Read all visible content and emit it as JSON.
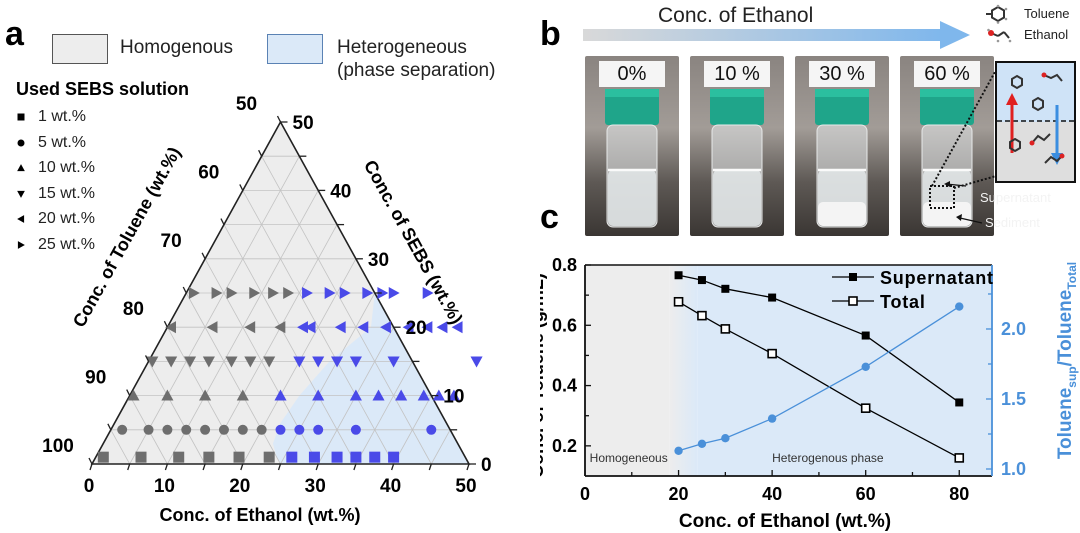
{
  "panels": {
    "a": {
      "letter": "a",
      "legend": {
        "homogenous": {
          "label": "Homogenous",
          "color": "#ededed"
        },
        "heterogeneous": {
          "label_line1": "Heterogeneous",
          "label_line2": "(phase separation)",
          "color": "#dbe9f8"
        }
      },
      "sebs_legend": {
        "title": "Used SEBS solution",
        "items": [
          {
            "marker": "square",
            "label": "1 wt.%"
          },
          {
            "marker": "circle",
            "label": "5 wt.%"
          },
          {
            "marker": "triangle-up",
            "label": "10 wt.%"
          },
          {
            "marker": "triangle-down",
            "label": "15 wt.%"
          },
          {
            "marker": "triangle-left",
            "label": "20 wt.%"
          },
          {
            "marker": "triangle-right",
            "label": "25 wt.%"
          }
        ]
      }
    },
    "b": {
      "letter": "b",
      "arrow_label": "Conc. of Ethanol",
      "molecule_legend": [
        {
          "icon": "toluene-molecule-icon",
          "label": "Toluene"
        },
        {
          "icon": "ethanol-molecule-icon",
          "label": "Ethanol"
        }
      ],
      "photos": [
        {
          "label": "0%",
          "sediment": false
        },
        {
          "label": "10 %",
          "sediment": false
        },
        {
          "label": "30 %",
          "sediment": true
        },
        {
          "label": "60 %",
          "sediment": true
        }
      ],
      "annotations": {
        "supernatant": "Supernatant",
        "sediment": "Sediment"
      }
    },
    "c": {
      "letter": "c"
    }
  },
  "chart_data": [
    {
      "type": "scatter",
      "subtype": "ternary",
      "title": "",
      "axes": {
        "bottom": {
          "label": "Conc. of Ethanol (wt.%)",
          "ticks": [
            "0",
            "10",
            "20",
            "30",
            "40",
            "50"
          ],
          "range": [
            0,
            50
          ]
        },
        "left": {
          "label": "Conc. of Toluene (wt.%)",
          "ticks": [
            "50",
            "60",
            "70",
            "80",
            "90",
            "100"
          ],
          "range": [
            50,
            100
          ]
        },
        "right": {
          "label": "Conc. of SEBS (wt.%)",
          "ticks": [
            "50",
            "40",
            "30",
            "20",
            "10",
            "0"
          ],
          "range": [
            0,
            50
          ]
        }
      },
      "regions": [
        {
          "name": "Homogenous",
          "color": "#ededed"
        },
        {
          "name": "Heterogeneous (phase separation)",
          "color": "#dbe9f8"
        }
      ],
      "boundary_ethanol_by_sebs": [
        [
          0,
          25
        ],
        [
          1,
          24
        ],
        [
          3,
          22.5
        ],
        [
          6,
          22
        ],
        [
          10,
          22.5
        ],
        [
          15,
          24
        ],
        [
          20,
          27
        ],
        [
          25,
          30
        ],
        [
          30,
          34
        ],
        [
          35,
          37
        ],
        [
          40,
          40
        ],
        [
          50,
          48
        ]
      ],
      "colors": {
        "homogeneous_point": "#6e6e6e",
        "heterogeneous_point": "#4a4ae8"
      },
      "series": [
        {
          "name": "1 wt.%",
          "marker": "square",
          "sebs": 1,
          "ethanol": [
            1,
            6,
            11,
            15,
            19,
            23,
            26,
            29,
            32,
            34.5,
            37,
            39.5
          ],
          "phase": [
            "h",
            "h",
            "h",
            "h",
            "h",
            "h",
            "x",
            "x",
            "x",
            "x",
            "x",
            "x"
          ]
        },
        {
          "name": "5 wt.%",
          "marker": "circle",
          "sebs": 5,
          "ethanol": [
            1.5,
            5,
            7.5,
            10,
            12.5,
            15,
            17.5,
            20,
            22.5,
            25,
            27.5,
            32.5,
            42.5
          ],
          "phase": [
            "h",
            "h",
            "h",
            "h",
            "h",
            "h",
            "h",
            "h",
            "x",
            "x",
            "x",
            "x",
            "x"
          ]
        },
        {
          "name": "10 wt.%",
          "marker": "triangle-up",
          "sebs": 10,
          "ethanol": [
            0.5,
            5,
            10,
            15,
            20,
            25,
            30,
            33,
            36,
            39,
            41,
            43
          ],
          "phase": [
            "h",
            "h",
            "h",
            "h",
            "x",
            "x",
            "x",
            "x",
            "x",
            "x",
            "x",
            "x"
          ]
        },
        {
          "name": "15 wt.%",
          "marker": "triangle-down",
          "sebs": 15,
          "ethanol": [
            0.5,
            3,
            5.5,
            8,
            11,
            13.5,
            16,
            20,
            22.5,
            25,
            27.5,
            32.5,
            43.5
          ],
          "phase": [
            "h",
            "h",
            "h",
            "h",
            "h",
            "h",
            "h",
            "x",
            "x",
            "x",
            "x",
            "x",
            "x"
          ]
        },
        {
          "name": "20 wt.%",
          "marker": "triangle-left",
          "sebs": 20,
          "ethanol": [
            0.5,
            6,
            11,
            15,
            18,
            19,
            23,
            26,
            29,
            32,
            34.5,
            36.5,
            38.5
          ],
          "phase": [
            "h",
            "h",
            "h",
            "h",
            "x",
            "x",
            "x",
            "x",
            "x",
            "x",
            "x",
            "x",
            "x"
          ]
        },
        {
          "name": "25 wt.%",
          "marker": "triangle-right",
          "sebs": 25,
          "ethanol": [
            1,
            4,
            6,
            9,
            11.5,
            13.5,
            16,
            19,
            21,
            24,
            26,
            27.5,
            32
          ],
          "phase": [
            "h",
            "h",
            "h",
            "h",
            "h",
            "h",
            "x",
            "x",
            "x",
            "x",
            "x",
            "x",
            "x"
          ]
        }
      ]
    },
    {
      "type": "line",
      "title": "",
      "xlabel": "Conc. of Ethanol (wt.%)",
      "ylabel": "Conc. of Toluene (g/mL)",
      "y2label_main": "Toluene",
      "y2label_sub1": "sup",
      "y2label_mid": "/Toluene",
      "y2label_sub2": "Total",
      "xlim": [
        0,
        87
      ],
      "ylim": [
        0.1,
        0.8
      ],
      "y2lim": [
        0.95,
        2.457
      ],
      "xticks": [
        0,
        20,
        40,
        60,
        80
      ],
      "yticks": [
        0.2,
        0.4,
        0.6,
        0.8
      ],
      "y2ticks": [
        1.0,
        1.5,
        2.0
      ],
      "ytick_labels": [
        "0.2",
        "0.4",
        "0.6",
        "0.8"
      ],
      "y2tick_labels": [
        "1.0",
        "1.5",
        "2.0"
      ],
      "xtick_labels": [
        "0",
        "20",
        "40",
        "60",
        "80"
      ],
      "regions": [
        {
          "name": "Homogeneous",
          "x_range": [
            0,
            20
          ],
          "color": "#ededed"
        },
        {
          "name": "Heterogenous phase",
          "x_range": [
            20,
            87
          ],
          "color": "#dbe9f8"
        }
      ],
      "legend_position": "top-right",
      "x": [
        20,
        25,
        30,
        40,
        60,
        80
      ],
      "series": [
        {
          "name": "Supernatant",
          "axis": "left",
          "marker": "filled-square",
          "color": "#000000",
          "values": [
            0.766,
            0.75,
            0.721,
            0.692,
            0.566,
            0.344
          ]
        },
        {
          "name": "Total",
          "axis": "left",
          "marker": "open-square",
          "color": "#000000",
          "values": [
            0.678,
            0.632,
            0.588,
            0.506,
            0.325,
            0.16
          ]
        },
        {
          "name": "Toluene_sup/Toluene_Total",
          "axis": "right",
          "marker": "filled-circle",
          "color": "#4a90d9",
          "values": [
            1.13,
            1.18,
            1.22,
            1.36,
            1.73,
            2.16
          ]
        }
      ]
    }
  ]
}
